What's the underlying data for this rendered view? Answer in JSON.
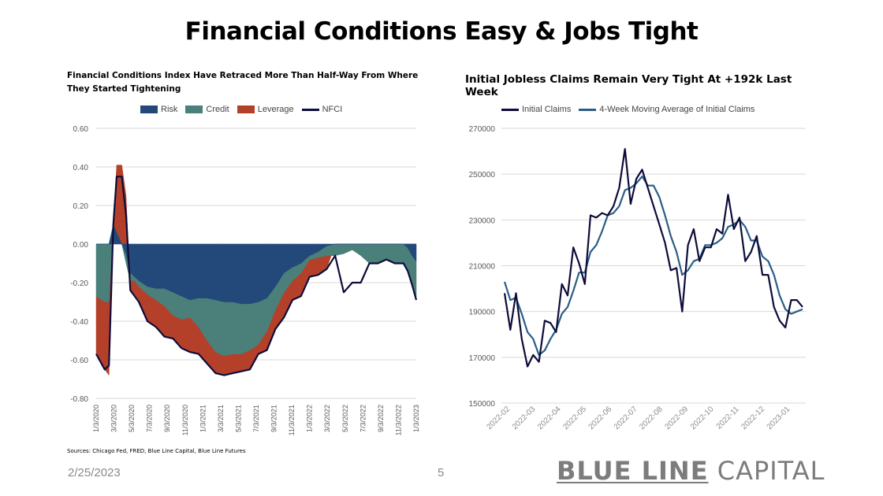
{
  "slide": {
    "title": "Financial Conditions Easy & Jobs Tight",
    "date": "2/25/2023",
    "page_number": "5",
    "brand_bold": "BLUE LINE",
    "brand_light": "CAPITAL",
    "sources": "Sources: Chicago Fed, FRED, Blue Line Capital, Blue Line Futures"
  },
  "colors": {
    "risk": "#22497a",
    "credit": "#4a7f7a",
    "leverage": "#b4402a",
    "nfci": "#0d0c3a",
    "claims": "#0d0c3a",
    "claims_ma": "#2a5d86",
    "grid": "#d9d9d9",
    "axis_text": "#595959"
  },
  "chart_data": [
    {
      "type": "area",
      "title": "Financial Conditions Index Have Retraced More Than Half-Way From Where They Started Tightening",
      "legend_position": "top",
      "grid": true,
      "ylim": [
        -0.8,
        0.6
      ],
      "y_ticks": [
        "0.60",
        "0.40",
        "0.20",
        "0.00",
        "-0.20",
        "-0.40",
        "-0.60",
        "-0.80"
      ],
      "y_tick_values": [
        0.6,
        0.4,
        0.2,
        0.0,
        -0.2,
        -0.4,
        -0.6,
        -0.8
      ],
      "x_ticks": [
        "1/3/2020",
        "3/3/2020",
        "5/3/2020",
        "7/3/2020",
        "9/3/2020",
        "11/3/2020",
        "1/3/2021",
        "3/3/2021",
        "5/3/2021",
        "7/3/2021",
        "9/3/2021",
        "11/3/2021",
        "1/3/2022",
        "3/3/2022",
        "5/3/2022",
        "7/3/2022",
        "9/3/2022",
        "11/3/2022",
        "1/3/2023"
      ],
      "x_months": [
        0,
        1,
        1.5,
        2,
        2.4,
        3,
        3.5,
        4,
        4.5,
        5,
        6,
        7,
        8,
        9,
        10,
        11,
        12,
        13,
        14,
        15,
        16,
        17,
        18,
        19,
        20,
        21,
        22,
        23,
        24,
        25,
        26,
        27,
        28,
        29,
        30,
        31,
        32,
        32.5,
        33,
        34,
        35,
        35.8,
        36,
        36.5,
        37,
        37.5
      ],
      "series": [
        {
          "name": "Risk",
          "values": [
            0,
            0,
            0,
            0.1,
            0.06,
            0,
            -0.05,
            -0.15,
            -0.17,
            -0.19,
            -0.22,
            -0.23,
            -0.23,
            -0.25,
            -0.27,
            -0.29,
            -0.28,
            -0.28,
            -0.29,
            -0.3,
            -0.3,
            -0.31,
            -0.31,
            -0.3,
            -0.28,
            -0.22,
            -0.15,
            -0.12,
            -0.1,
            -0.06,
            -0.04,
            -0.01,
            0,
            0,
            0,
            0,
            0,
            0,
            0,
            0,
            0,
            0,
            0,
            -0.02,
            -0.06,
            -0.09
          ]
        },
        {
          "name": "Credit",
          "values": [
            -0.27,
            -0.3,
            -0.3,
            0,
            0,
            0,
            -0.05,
            -0.04,
            -0.02,
            -0.03,
            -0.04,
            -0.06,
            -0.09,
            -0.12,
            -0.12,
            -0.09,
            -0.15,
            -0.22,
            -0.27,
            -0.28,
            -0.27,
            -0.26,
            -0.24,
            -0.22,
            -0.17,
            -0.12,
            -0.1,
            -0.07,
            -0.05,
            -0.02,
            -0.03,
            -0.05,
            -0.06,
            -0.05,
            -0.03,
            -0.06,
            -0.1,
            -0.1,
            -0.1,
            -0.08,
            -0.1,
            -0.1,
            -0.1,
            -0.12,
            -0.15,
            -0.2
          ]
        },
        {
          "name": "Leverage",
          "values": [
            -0.3,
            -0.35,
            -0.38,
            0,
            0.35,
            0.41,
            0.25,
            -0.05,
            -0.08,
            -0.08,
            -0.14,
            -0.14,
            -0.16,
            -0.12,
            -0.15,
            -0.18,
            -0.14,
            -0.12,
            -0.11,
            -0.1,
            -0.1,
            -0.09,
            -0.1,
            -0.05,
            -0.1,
            -0.1,
            -0.13,
            -0.1,
            -0.12,
            -0.09,
            -0.09,
            -0.07,
            0,
            0,
            0,
            0,
            0,
            0,
            0,
            0,
            0,
            0,
            0,
            0,
            0,
            0
          ]
        },
        {
          "name": "NFCI",
          "values": [
            -0.57,
            -0.65,
            -0.63,
            0.1,
            0.35,
            0.35,
            0.15,
            -0.24,
            -0.27,
            -0.3,
            -0.4,
            -0.43,
            -0.48,
            -0.49,
            -0.54,
            -0.56,
            -0.57,
            -0.62,
            -0.67,
            -0.68,
            -0.67,
            -0.66,
            -0.65,
            -0.57,
            -0.55,
            -0.44,
            -0.38,
            -0.29,
            -0.27,
            -0.17,
            -0.16,
            -0.13,
            -0.06,
            -0.25,
            -0.2,
            -0.2,
            -0.1,
            -0.1,
            -0.1,
            -0.08,
            -0.1,
            -0.1,
            -0.1,
            -0.14,
            -0.21,
            -0.29
          ]
        }
      ]
    },
    {
      "type": "line",
      "title": "Initial Jobless Claims Remain Very Tight At +192k Last Week",
      "legend_position": "top",
      "grid": true,
      "ylim": [
        150000,
        270000
      ],
      "y_ticks": [
        "270000",
        "250000",
        "230000",
        "210000",
        "190000",
        "170000",
        "150000"
      ],
      "y_tick_values": [
        270000,
        250000,
        230000,
        210000,
        190000,
        170000,
        150000
      ],
      "x_ticks": [
        "2022-02",
        "2022-03",
        "2022-04",
        "2022-05",
        "2022-06",
        "2022-07",
        "2022-08",
        "2022-09",
        "2022-10",
        "2022-11",
        "2022-12",
        "2023-01"
      ],
      "series": [
        {
          "name": "Initial Claims",
          "values": [
            198000,
            182000,
            198000,
            178000,
            166000,
            171000,
            168000,
            186000,
            185000,
            181000,
            202000,
            197000,
            218000,
            211000,
            202000,
            232000,
            231000,
            233000,
            232000,
            236000,
            244000,
            261000,
            237000,
            248000,
            252000,
            244000,
            236000,
            228000,
            220000,
            208000,
            209000,
            190000,
            219000,
            226000,
            212000,
            218000,
            218000,
            226000,
            224000,
            241000,
            226000,
            231000,
            212000,
            216000,
            223000,
            206000,
            206000,
            192000,
            186000,
            183000,
            195000,
            195000,
            192000
          ]
        },
        {
          "name": "4-Week Moving Average of Initial Claims",
          "values": [
            203000,
            195000,
            196000,
            189000,
            181000,
            178000,
            171000,
            173000,
            178000,
            182000,
            189000,
            192000,
            199000,
            207000,
            207000,
            216000,
            219000,
            225000,
            232000,
            233000,
            236000,
            243000,
            244000,
            246000,
            249000,
            245000,
            245000,
            240000,
            232000,
            223000,
            216000,
            206000,
            208000,
            212000,
            213000,
            219000,
            219000,
            220000,
            222000,
            227000,
            228000,
            230000,
            227000,
            221000,
            221000,
            214000,
            212000,
            206000,
            197000,
            191000,
            189000,
            190000,
            191000
          ]
        }
      ]
    }
  ]
}
